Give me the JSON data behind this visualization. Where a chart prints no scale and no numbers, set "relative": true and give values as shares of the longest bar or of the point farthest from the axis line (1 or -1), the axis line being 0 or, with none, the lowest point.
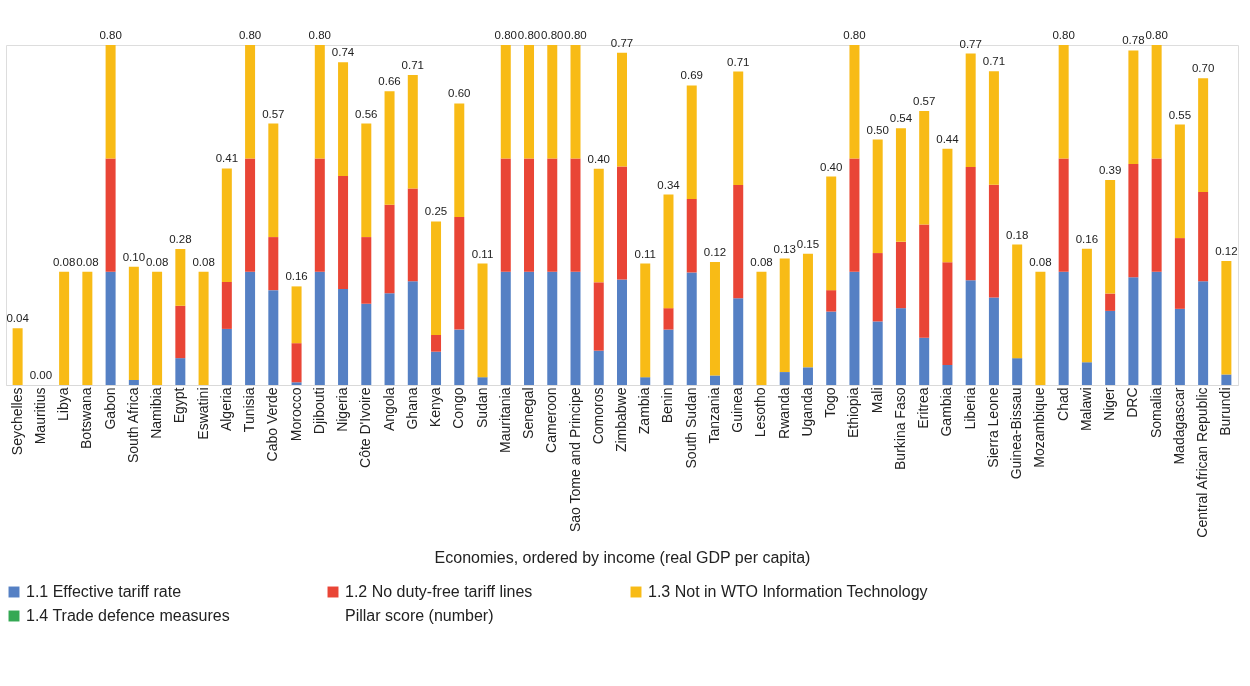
{
  "chart_data": {
    "type": "bar",
    "stacked": true,
    "relative": true,
    "xlabel": "Economies, ordered by income (real GDP per capita)",
    "legend": "bottom",
    "grid": false,
    "categories": [
      "Seychelles",
      "Mauritius",
      "Libya",
      "Botswana",
      "Gabon",
      "South Africa",
      "Namibia",
      "Egypt",
      "Eswatini",
      "Algeria",
      "Tunisia",
      "Cabo Verde",
      "Morocco",
      "Djibouti",
      "Nigeria",
      "Côte D'Ivoire",
      "Angola",
      "Ghana",
      "Kenya",
      "Congo",
      "Sudan",
      "Mauritania",
      "Senegal",
      "Cameroon",
      "Sao Tome and Principe",
      "Comoros",
      "Zimbabwe",
      "Zambia",
      "Benin",
      "South Sudan",
      "Tanzania",
      "Guinea",
      "Lesotho",
      "Rwanda",
      "Uganda",
      "Togo",
      "Ethiopia",
      "Mali",
      "Burkina Faso",
      "Eritrea",
      "Gambia",
      "Liberia",
      "Sierra Leone",
      "Guinea-Bissau",
      "Mozambique",
      "Chad",
      "Malawi",
      "Niger",
      "DRC",
      "Somalia",
      "Madagascar",
      "Central African Republic",
      "Burundi"
    ],
    "series": [
      {
        "name": "1.1 Effective tariff rate",
        "color": "#5580c4",
        "values": [
          0,
          0,
          0,
          0,
          0.333,
          0.015,
          0,
          0.079,
          0,
          0.165,
          0.333,
          0.279,
          0.008,
          0.333,
          0.282,
          0.239,
          0.27,
          0.305,
          0.098,
          0.163,
          0.023,
          0.333,
          0.333,
          0.333,
          0.333,
          0.101,
          0.31,
          0.023,
          0.163,
          0.331,
          0.028,
          0.255,
          0,
          0.038,
          0.052,
          0.216,
          0.333,
          0.187,
          0.226,
          0.139,
          0.059,
          0.308,
          0.257,
          0.079,
          0,
          0.333,
          0.067,
          0.218,
          0.317,
          0.333,
          0.224,
          0.305,
          0.031
        ]
      },
      {
        "name": "1.2 No duty-free tariff lines",
        "color": "#e94536",
        "values": [
          0,
          0,
          0,
          0,
          0.333,
          0,
          0,
          0.154,
          0,
          0.138,
          0.333,
          0.156,
          0.115,
          0.333,
          0.333,
          0.196,
          0.26,
          0.273,
          0.049,
          0.331,
          0,
          0.333,
          0.333,
          0.333,
          0.333,
          0.201,
          0.333,
          0,
          0.063,
          0.216,
          0,
          0.333,
          0,
          0,
          0,
          0.063,
          0.333,
          0.201,
          0.195,
          0.333,
          0.302,
          0.333,
          0.332,
          0,
          0,
          0.333,
          0,
          0.051,
          0.333,
          0.333,
          0.208,
          0.263,
          0
        ]
      },
      {
        "name": "1.3  Not in WTO Information Technology",
        "color": "#f8bb16",
        "values": [
          0.167,
          0,
          0.333,
          0.333,
          0.334,
          0.333,
          0.333,
          0.167,
          0.333,
          0.334,
          0.334,
          0.334,
          0.167,
          0.334,
          0.334,
          0.334,
          0.334,
          0.334,
          0.334,
          0.334,
          0.334,
          0.334,
          0.334,
          0.334,
          0.334,
          0.334,
          0.334,
          0.334,
          0.334,
          0.334,
          0.334,
          0.334,
          0.333,
          0.334,
          0.334,
          0.334,
          0.334,
          0.334,
          0.334,
          0.334,
          0.334,
          0.334,
          0.334,
          0.334,
          0.333,
          0.334,
          0.334,
          0.334,
          0.334,
          0.334,
          0.334,
          0.334,
          0.334
        ]
      },
      {
        "name": "1.4 Trade defence measures",
        "color": "#34a853",
        "values": [
          0,
          0,
          0,
          0,
          0,
          0,
          0,
          0,
          0,
          0,
          0,
          0,
          0,
          0,
          0,
          0,
          0,
          0,
          0,
          0,
          0,
          0,
          0,
          0,
          0,
          0,
          0,
          0,
          0,
          0,
          0,
          0,
          0,
          0,
          0,
          0,
          0,
          0,
          0,
          0,
          0,
          0,
          0,
          0,
          0,
          0,
          0,
          0,
          0,
          0,
          0,
          0,
          0
        ]
      },
      {
        "name": "Pillar score (number)",
        "values": [
          null,
          null,
          null,
          null,
          null,
          null,
          null,
          null,
          null,
          null,
          null,
          null,
          null,
          null,
          null,
          null,
          null,
          null,
          null,
          null,
          null,
          null,
          null,
          null,
          null,
          null,
          null,
          null,
          null,
          null,
          null,
          null,
          null,
          null,
          null,
          null,
          null,
          null,
          null,
          null,
          null,
          null,
          null,
          null,
          null,
          null,
          null,
          null,
          null,
          null,
          null,
          null,
          null
        ]
      }
    ],
    "annotations": [
      {
        "text": "0.04",
        "x": "Seychelles",
        "y": 0.167
      },
      {
        "text": "0.00",
        "x": "Mauritius",
        "y": 0
      },
      {
        "text": "0.08",
        "x": "Libya",
        "y": 0.333
      },
      {
        "text": "0.08",
        "x": "Botswana",
        "y": 0.333
      },
      {
        "text": "0.80",
        "x": "Gabon",
        "y": 1
      },
      {
        "text": "0.10",
        "x": "South Africa",
        "y": 0.348
      },
      {
        "text": "0.08",
        "x": "Namibia",
        "y": 0.333
      },
      {
        "text": "0.28",
        "x": "Egypt",
        "y": 0.4
      },
      {
        "text": "0.08",
        "x": "Eswatini",
        "y": 0.333
      },
      {
        "text": "0.41",
        "x": "Algeria",
        "y": 0.637
      },
      {
        "text": "0.80",
        "x": "Tunisia",
        "y": 1
      },
      {
        "text": "0.57",
        "x": "Cabo Verde",
        "y": 0.769
      },
      {
        "text": "0.16",
        "x": "Morocco",
        "y": 0.29
      },
      {
        "text": "0.80",
        "x": "Djibouti",
        "y": 1
      },
      {
        "text": "0.74",
        "x": "Nigeria",
        "y": 0.949
      },
      {
        "text": "0.56",
        "x": "Côte D'Ivoire",
        "y": 0.769
      },
      {
        "text": "0.66",
        "x": "Angola",
        "y": 0.864
      },
      {
        "text": "0.71",
        "x": "Ghana",
        "y": 0.912
      },
      {
        "text": "0.25",
        "x": "Kenya",
        "y": 0.481
      },
      {
        "text": "0.60",
        "x": "Congo",
        "y": 0.828
      },
      {
        "text": "0.11",
        "x": "Sudan",
        "y": 0.357
      },
      {
        "text": "0.80",
        "x": "Mauritania",
        "y": 1
      },
      {
        "text": "0.80",
        "x": "Senegal",
        "y": 1
      },
      {
        "text": "0.80",
        "x": "Cameroon",
        "y": 1
      },
      {
        "text": "0.80",
        "x": "Sao Tome and Principe",
        "y": 1
      },
      {
        "text": "0.40",
        "x": "Comoros",
        "y": 0.636
      },
      {
        "text": "0.77",
        "x": "Zimbabwe",
        "y": 0.977
      },
      {
        "text": "0.11",
        "x": "Zambia",
        "y": 0.357
      },
      {
        "text": "0.34",
        "x": "Benin",
        "y": 0.56
      },
      {
        "text": "0.69",
        "x": "South Sudan",
        "y": 0.881
      },
      {
        "text": "0.12",
        "x": "Tanzania",
        "y": 0.362
      },
      {
        "text": "0.71",
        "x": "Guinea",
        "y": 0.922
      },
      {
        "text": "0.08",
        "x": "Lesotho",
        "y": 0.333
      },
      {
        "text": "0.13",
        "x": "Rwanda",
        "y": 0.372
      },
      {
        "text": "0.15",
        "x": "Uganda",
        "y": 0.386
      },
      {
        "text": "0.40",
        "x": "Togo",
        "y": 0.613
      },
      {
        "text": "0.80",
        "x": "Ethiopia",
        "y": 1
      },
      {
        "text": "0.50",
        "x": "Mali",
        "y": 0.722
      },
      {
        "text": "0.54",
        "x": "Burkina Faso",
        "y": 0.755
      },
      {
        "text": "0.57",
        "x": "Eritrea",
        "y": 0.806
      },
      {
        "text": "0.44",
        "x": "Gambia",
        "y": 0.695
      },
      {
        "text": "0.77",
        "x": "Liberia",
        "y": 0.975
      },
      {
        "text": "0.71",
        "x": "Sierra Leone",
        "y": 0.923
      },
      {
        "text": "0.18",
        "x": "Guinea-Bissau",
        "y": 0.413
      },
      {
        "text": "0.08",
        "x": "Mozambique",
        "y": 0.333
      },
      {
        "text": "0.80",
        "x": "Chad",
        "y": 1
      },
      {
        "text": "0.16",
        "x": "Malawi",
        "y": 0.401
      },
      {
        "text": "0.39",
        "x": "Niger",
        "y": 0.603
      },
      {
        "text": "0.78",
        "x": "DRC",
        "y": 0.984
      },
      {
        "text": "0.80",
        "x": "Somalia",
        "y": 1
      },
      {
        "text": "0.55",
        "x": "Madagascar",
        "y": 0.766
      },
      {
        "text": "0.70",
        "x": "Central African Republic",
        "y": 0.902
      },
      {
        "text": "0.12",
        "x": "Burundi",
        "y": 0.365
      }
    ]
  }
}
